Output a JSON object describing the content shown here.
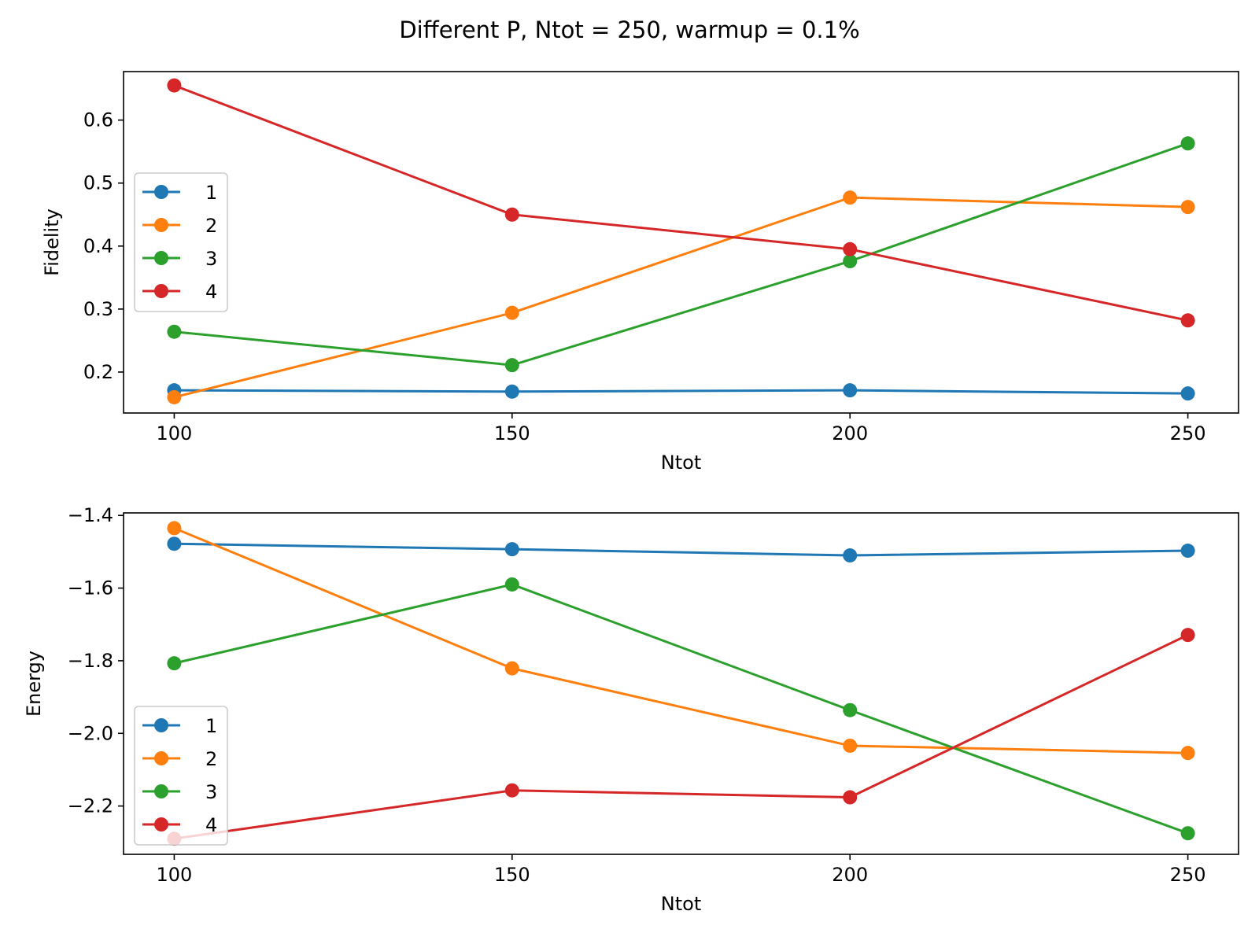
{
  "figure": {
    "suptitle": "Different P, Ntot = 250, warmup = 0.1%"
  },
  "chart_data": [
    {
      "type": "line",
      "name": "fidelity",
      "x": [
        100,
        150,
        200,
        250
      ],
      "xlabel": "Ntot",
      "ylabel": "Fidelity",
      "xlim": [
        92.5,
        257.5
      ],
      "ylim": [
        0.135,
        0.677
      ],
      "xticks": [
        100,
        150,
        200,
        250
      ],
      "xtick_labels": [
        "100",
        "150",
        "200",
        "250"
      ],
      "yticks": [
        0.2,
        0.3,
        0.4,
        0.5,
        0.6
      ],
      "ytick_labels": [
        "0.2",
        "0.3",
        "0.4",
        "0.5",
        "0.6"
      ],
      "legend": "center-left",
      "grid": false,
      "series": [
        {
          "name": "1",
          "color": "#1f77b4",
          "values": [
            0.171,
            0.169,
            0.171,
            0.166
          ]
        },
        {
          "name": "2",
          "color": "#ff7f0e",
          "values": [
            0.16,
            0.294,
            0.477,
            0.462
          ]
        },
        {
          "name": "3",
          "color": "#2ca02c",
          "values": [
            0.264,
            0.211,
            0.376,
            0.563
          ]
        },
        {
          "name": "4",
          "color": "#d62728",
          "values": [
            0.655,
            0.45,
            0.395,
            0.282
          ]
        }
      ]
    },
    {
      "type": "line",
      "name": "energy",
      "x": [
        100,
        150,
        200,
        250
      ],
      "xlabel": "Ntot",
      "ylabel": "Energy",
      "xlim": [
        92.5,
        257.5
      ],
      "ylim": [
        -2.333,
        -1.393
      ],
      "xticks": [
        100,
        150,
        200,
        250
      ],
      "xtick_labels": [
        "100",
        "150",
        "200",
        "250"
      ],
      "yticks": [
        -2.2,
        -2.0,
        -1.8,
        -1.6,
        -1.4
      ],
      "ytick_labels": [
        "−2.2",
        "−2.0",
        "−1.8",
        "−1.6",
        "−1.4"
      ],
      "legend": "lower-left",
      "grid": false,
      "series": [
        {
          "name": "1",
          "color": "#1f77b4",
          "values": [
            -1.478,
            -1.493,
            -1.51,
            -1.497
          ]
        },
        {
          "name": "2",
          "color": "#ff7f0e",
          "values": [
            -1.435,
            -1.821,
            -2.034,
            -2.054
          ]
        },
        {
          "name": "3",
          "color": "#2ca02c",
          "values": [
            -1.807,
            -1.59,
            -1.936,
            -2.275
          ]
        },
        {
          "name": "4",
          "color": "#d62728",
          "values": [
            -2.29,
            -2.157,
            -2.176,
            -1.729
          ]
        }
      ]
    }
  ]
}
